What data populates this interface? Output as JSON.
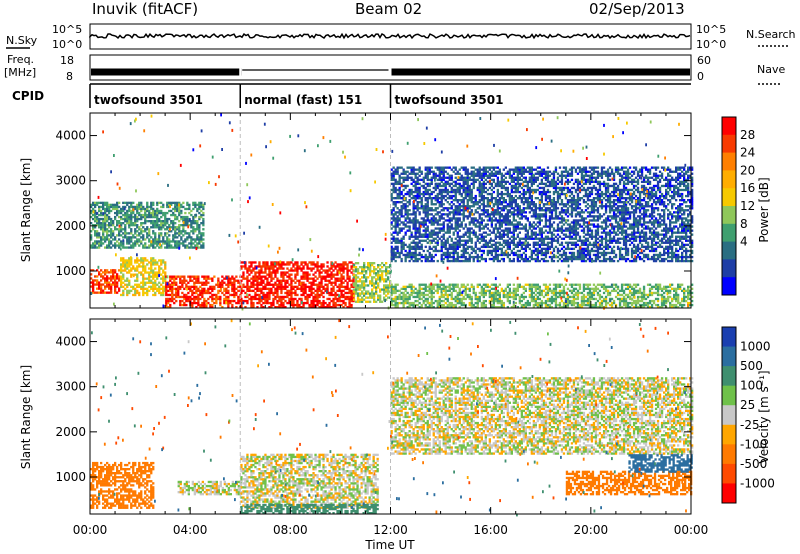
{
  "header": {
    "station": "Inuvik (fitACF)",
    "beam": "Beam 02",
    "date": "02/Sep/2013"
  },
  "strips": {
    "nsky_label": "N.Sky",
    "nsky_ticks": [
      "10^5",
      "10^0"
    ],
    "nsearch_label": "N.Search",
    "freq_label_1": "Freq.",
    "freq_label_2": "[MHz]",
    "freq_ticks": [
      "18",
      "8"
    ],
    "nave_ticks": [
      "60",
      "0"
    ],
    "nave_label": "Nave",
    "cpid_label": "CPID",
    "cpid_segments": [
      {
        "label": "twofsound 3501",
        "start_hour": 0,
        "end_hour": 6
      },
      {
        "label": "normal (fast) 151",
        "start_hour": 6,
        "end_hour": 12
      },
      {
        "label": "twofsound 3501",
        "start_hour": 12,
        "end_hour": 24
      }
    ]
  },
  "chart_data": [
    {
      "type": "heatmap",
      "name": "power",
      "ylabel": "Slant Range [km]",
      "xlabel": "Time UT",
      "xlim": [
        0,
        24
      ],
      "ylim": [
        180,
        4500
      ],
      "x_ticks": [
        "00:00",
        "04:00",
        "08:00",
        "12:00",
        "16:00",
        "20:00",
        "00:00"
      ],
      "y_ticks": [
        1000,
        2000,
        3000,
        4000
      ],
      "colorbar": {
        "label": "Power [dB]",
        "ticks": [
          28,
          24,
          20,
          16,
          12,
          8,
          4
        ],
        "colors": [
          "#ff0000",
          "#f83a00",
          "#ff7f00",
          "#ffad00",
          "#f6c900",
          "#8fc75a",
          "#3f9f6f",
          "#2a6e82",
          "#1e3ea6",
          "#0000ff"
        ]
      },
      "regions": [
        {
          "t0": 0.0,
          "t1": 1.2,
          "r0": 500,
          "r1": 1000,
          "level": 0.9
        },
        {
          "t0": 1.2,
          "t1": 3.0,
          "r0": 450,
          "r1": 1300,
          "level": 0.55
        },
        {
          "t0": 3.0,
          "t1": 6.0,
          "r0": 180,
          "r1": 900,
          "level": 0.93
        },
        {
          "t0": 6.0,
          "t1": 10.5,
          "r0": 180,
          "r1": 1200,
          "level": 0.96
        },
        {
          "t0": 10.5,
          "t1": 12.0,
          "r0": 300,
          "r1": 1200,
          "level": 0.45
        },
        {
          "t0": 0.0,
          "t1": 4.5,
          "r0": 1500,
          "r1": 2500,
          "level": 0.3
        },
        {
          "t0": 12.0,
          "t1": 24.0,
          "r0": 1200,
          "r1": 3300,
          "level": 0.15
        },
        {
          "t0": 12.0,
          "t1": 24.0,
          "r0": 180,
          "r1": 700,
          "level": 0.4
        }
      ]
    },
    {
      "type": "heatmap",
      "name": "velocity",
      "ylabel": "Slant Range [km]",
      "xlabel": "Time UT",
      "xlim": [
        0,
        24
      ],
      "ylim": [
        180,
        4500
      ],
      "x_ticks": [
        "00:00",
        "04:00",
        "08:00",
        "12:00",
        "16:00",
        "20:00",
        "00:00"
      ],
      "y_ticks": [
        1000,
        2000,
        3000,
        4000
      ],
      "colorbar": {
        "label": "Velocity [m s⁻¹]",
        "ticks": [
          1000,
          500,
          100,
          25,
          -25,
          -100,
          -500,
          -1000
        ],
        "colors": [
          "#1a3fb0",
          "#2b6ea0",
          "#3f8f6f",
          "#6fc14a",
          "#c8c8c8",
          "#ffa600",
          "#ff7a00",
          "#ff4a00",
          "#ff0000"
        ]
      },
      "regions": [
        {
          "t0": 0.0,
          "t1": 2.5,
          "r0": 300,
          "r1": 1300,
          "level": -300
        },
        {
          "t0": 3.5,
          "t1": 6.0,
          "r0": 600,
          "r1": 900,
          "level": 0
        },
        {
          "t0": 6.0,
          "t1": 11.5,
          "r0": 300,
          "r1": 1500,
          "level": 0
        },
        {
          "t0": 6.0,
          "t1": 11.5,
          "r0": 180,
          "r1": 400,
          "level": 200
        },
        {
          "t0": 12.0,
          "t1": 24.0,
          "r0": 1500,
          "r1": 3200,
          "level": 0
        },
        {
          "t0": 19.0,
          "t1": 24.0,
          "r0": 600,
          "r1": 1100,
          "level": -300
        },
        {
          "t0": 21.5,
          "t1": 24.0,
          "r0": 1100,
          "r1": 1500,
          "level": 600
        }
      ]
    }
  ]
}
